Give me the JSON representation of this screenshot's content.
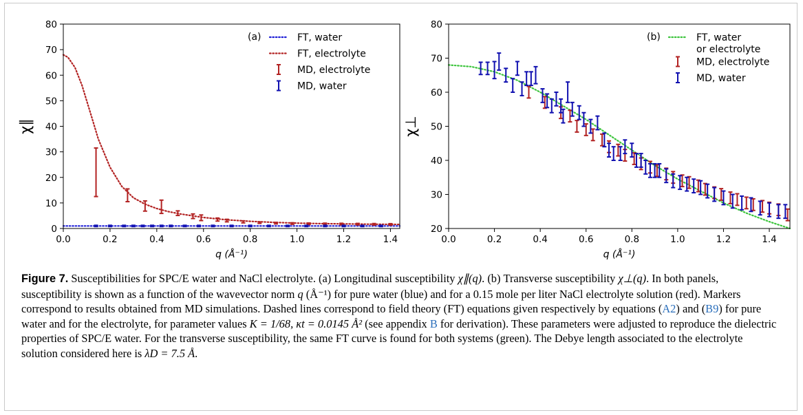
{
  "chart_data": [
    {
      "type": "scatter",
      "panel_label": "(a)",
      "xlabel": "q (Å⁻¹)",
      "ylabel": "χ∥",
      "xlim": [
        0.0,
        1.44
      ],
      "ylim": [
        0,
        80
      ],
      "xticks": [
        0.0,
        0.2,
        0.4,
        0.6,
        0.8,
        1.0,
        1.2,
        1.4
      ],
      "yticks": [
        0,
        10,
        20,
        30,
        40,
        50,
        60,
        70,
        80
      ],
      "legend_position": "top-right",
      "grid": false,
      "series": [
        {
          "name": "FT, water",
          "kind": "line",
          "style": "dotted",
          "color": "#1f1fd6",
          "x": [
            0.0,
            1.44
          ],
          "y": [
            1.0,
            1.0
          ]
        },
        {
          "name": "FT, electrolyte",
          "kind": "line",
          "style": "dotted",
          "color": "#b22222",
          "x": [
            0.0,
            0.02,
            0.05,
            0.08,
            0.1,
            0.12,
            0.15,
            0.2,
            0.25,
            0.3,
            0.35,
            0.4,
            0.45,
            0.5,
            0.6,
            0.7,
            0.8,
            0.9,
            1.0,
            1.1,
            1.2,
            1.3,
            1.44
          ],
          "y": [
            68,
            67,
            63,
            56,
            50,
            44,
            35,
            24,
            16.5,
            12,
            9.5,
            7.8,
            6.6,
            5.7,
            4.3,
            3.4,
            2.8,
            2.4,
            2.1,
            1.9,
            1.8,
            1.7,
            1.6
          ]
        },
        {
          "name": "MD, electrolyte",
          "kind": "errorbar",
          "color": "#b22222",
          "points": [
            {
              "x": 0.14,
              "y": 22,
              "err": 9.5
            },
            {
              "x": 0.275,
              "y": 13,
              "err": 2.5
            },
            {
              "x": 0.35,
              "y": 8.8,
              "err": 2.0
            },
            {
              "x": 0.42,
              "y": 8.5,
              "err": 2.6
            },
            {
              "x": 0.49,
              "y": 6.0,
              "err": 0.9
            },
            {
              "x": 0.555,
              "y": 4.8,
              "err": 0.9
            },
            {
              "x": 0.59,
              "y": 4.2,
              "err": 1.1
            },
            {
              "x": 0.66,
              "y": 3.5,
              "err": 0.6
            },
            {
              "x": 0.7,
              "y": 3.1,
              "err": 0.5
            },
            {
              "x": 0.77,
              "y": 2.6,
              "err": 0.4
            },
            {
              "x": 0.84,
              "y": 2.3,
              "err": 0.3
            },
            {
              "x": 0.91,
              "y": 2.1,
              "err": 0.3
            },
            {
              "x": 0.98,
              "y": 1.95,
              "err": 0.3
            },
            {
              "x": 1.05,
              "y": 1.85,
              "err": 0.3
            },
            {
              "x": 1.12,
              "y": 1.8,
              "err": 0.3
            },
            {
              "x": 1.19,
              "y": 1.75,
              "err": 0.3
            },
            {
              "x": 1.26,
              "y": 1.7,
              "err": 0.3
            },
            {
              "x": 1.33,
              "y": 1.65,
              "err": 0.3
            },
            {
              "x": 1.4,
              "y": 1.6,
              "err": 0.3
            }
          ]
        },
        {
          "name": "MD, water",
          "kind": "errorbar",
          "color": "#1010b0",
          "points": [
            {
              "x": 0.14,
              "y": 1.0,
              "err": 0.25
            },
            {
              "x": 0.2,
              "y": 1.0,
              "err": 0.25
            },
            {
              "x": 0.26,
              "y": 1.0,
              "err": 0.25
            },
            {
              "x": 0.3,
              "y": 1.0,
              "err": 0.25
            },
            {
              "x": 0.34,
              "y": 1.0,
              "err": 0.25
            },
            {
              "x": 0.38,
              "y": 1.0,
              "err": 0.25
            },
            {
              "x": 0.42,
              "y": 1.0,
              "err": 0.25
            },
            {
              "x": 0.46,
              "y": 1.0,
              "err": 0.25
            },
            {
              "x": 0.52,
              "y": 1.0,
              "err": 0.25
            },
            {
              "x": 0.58,
              "y": 1.0,
              "err": 0.25
            },
            {
              "x": 0.64,
              "y": 1.0,
              "err": 0.25
            },
            {
              "x": 0.72,
              "y": 1.0,
              "err": 0.25
            },
            {
              "x": 0.8,
              "y": 1.0,
              "err": 0.25
            },
            {
              "x": 0.88,
              "y": 1.0,
              "err": 0.25
            },
            {
              "x": 0.96,
              "y": 1.0,
              "err": 0.25
            },
            {
              "x": 1.04,
              "y": 1.0,
              "err": 0.25
            },
            {
              "x": 1.12,
              "y": 1.0,
              "err": 0.25
            },
            {
              "x": 1.2,
              "y": 1.0,
              "err": 0.25
            },
            {
              "x": 1.28,
              "y": 1.0,
              "err": 0.25
            },
            {
              "x": 1.36,
              "y": 1.0,
              "err": 0.25
            }
          ]
        }
      ]
    },
    {
      "type": "scatter",
      "panel_label": "(b)",
      "xlabel": "q (Å⁻¹)",
      "ylabel": "χ⊥",
      "xlim": [
        0.0,
        1.49
      ],
      "ylim": [
        20,
        80
      ],
      "xticks": [
        0.0,
        0.2,
        0.4,
        0.6,
        0.8,
        1.0,
        1.2,
        1.4
      ],
      "yticks": [
        20,
        30,
        40,
        50,
        60,
        70,
        80
      ],
      "legend_position": "top-right",
      "grid": false,
      "series": [
        {
          "name": "FT, water or electrolyte",
          "kind": "line",
          "style": "dotted",
          "color": "#3cc43c",
          "x": [
            0.0,
            0.1,
            0.2,
            0.3,
            0.4,
            0.5,
            0.6,
            0.7,
            0.8,
            0.9,
            1.0,
            1.1,
            1.2,
            1.3,
            1.4,
            1.49
          ],
          "y": [
            68,
            67.5,
            66,
            63.5,
            60,
            56,
            52,
            47.5,
            43,
            38.5,
            34.5,
            31,
            27.5,
            24.5,
            22,
            20
          ]
        },
        {
          "name": "MD, electrolyte",
          "kind": "errorbar",
          "color": "#b22222",
          "points": [
            {
              "x": 0.35,
              "y": 60,
              "err": 1.7
            },
            {
              "x": 0.42,
              "y": 57,
              "err": 1.7
            },
            {
              "x": 0.49,
              "y": 54,
              "err": 1.7
            },
            {
              "x": 0.53,
              "y": 53,
              "err": 1.7
            },
            {
              "x": 0.56,
              "y": 50,
              "err": 1.7
            },
            {
              "x": 0.6,
              "y": 49,
              "err": 1.7
            },
            {
              "x": 0.63,
              "y": 47.5,
              "err": 1.7
            },
            {
              "x": 0.67,
              "y": 46,
              "err": 1.7
            },
            {
              "x": 0.7,
              "y": 44,
              "err": 1.7
            },
            {
              "x": 0.74,
              "y": 43,
              "err": 1.7
            },
            {
              "x": 0.77,
              "y": 41.5,
              "err": 1.7
            },
            {
              "x": 0.81,
              "y": 40.5,
              "err": 1.7
            },
            {
              "x": 0.84,
              "y": 39,
              "err": 1.7
            },
            {
              "x": 0.88,
              "y": 38,
              "err": 1.7
            },
            {
              "x": 0.91,
              "y": 37,
              "err": 1.7
            },
            {
              "x": 0.95,
              "y": 36,
              "err": 1.7
            },
            {
              "x": 0.98,
              "y": 35,
              "err": 1.7
            },
            {
              "x": 1.02,
              "y": 34,
              "err": 1.7
            },
            {
              "x": 1.05,
              "y": 33.5,
              "err": 1.7
            },
            {
              "x": 1.09,
              "y": 32.5,
              "err": 1.7
            },
            {
              "x": 1.12,
              "y": 31.5,
              "err": 1.7
            },
            {
              "x": 1.16,
              "y": 30.5,
              "err": 1.7
            },
            {
              "x": 1.19,
              "y": 30,
              "err": 1.7
            },
            {
              "x": 1.23,
              "y": 29,
              "err": 1.7
            },
            {
              "x": 1.26,
              "y": 28.5,
              "err": 1.7
            },
            {
              "x": 1.3,
              "y": 27.5,
              "err": 1.7
            },
            {
              "x": 1.33,
              "y": 27,
              "err": 1.7
            },
            {
              "x": 1.37,
              "y": 26.5,
              "err": 1.7
            },
            {
              "x": 1.4,
              "y": 26,
              "err": 1.7
            },
            {
              "x": 1.44,
              "y": 25.5,
              "err": 1.7
            },
            {
              "x": 1.48,
              "y": 24,
              "err": 1.7
            }
          ]
        },
        {
          "name": "MD, water",
          "kind": "errorbar",
          "color": "#1010b0",
          "points": [
            {
              "x": 0.14,
              "y": 67,
              "err": 1.8
            },
            {
              "x": 0.17,
              "y": 67,
              "err": 1.8
            },
            {
              "x": 0.2,
              "y": 66.5,
              "err": 2.5
            },
            {
              "x": 0.22,
              "y": 69,
              "err": 2.5
            },
            {
              "x": 0.25,
              "y": 65,
              "err": 2.0
            },
            {
              "x": 0.28,
              "y": 62,
              "err": 2.0
            },
            {
              "x": 0.3,
              "y": 67,
              "err": 2.0
            },
            {
              "x": 0.32,
              "y": 61,
              "err": 2.0
            },
            {
              "x": 0.34,
              "y": 64,
              "err": 2.0
            },
            {
              "x": 0.36,
              "y": 64,
              "err": 2.0
            },
            {
              "x": 0.38,
              "y": 65,
              "err": 2.5
            },
            {
              "x": 0.41,
              "y": 59,
              "err": 2.0
            },
            {
              "x": 0.43,
              "y": 57.5,
              "err": 2.0
            },
            {
              "x": 0.45,
              "y": 56,
              "err": 2.0
            },
            {
              "x": 0.47,
              "y": 58,
              "err": 2.0
            },
            {
              "x": 0.49,
              "y": 56,
              "err": 2.0
            },
            {
              "x": 0.5,
              "y": 53,
              "err": 2.0
            },
            {
              "x": 0.52,
              "y": 60,
              "err": 3.0
            },
            {
              "x": 0.54,
              "y": 55,
              "err": 2.0
            },
            {
              "x": 0.57,
              "y": 54,
              "err": 2.0
            },
            {
              "x": 0.59,
              "y": 52,
              "err": 2.0
            },
            {
              "x": 0.62,
              "y": 50,
              "err": 2.0
            },
            {
              "x": 0.65,
              "y": 51,
              "err": 2.0
            },
            {
              "x": 0.68,
              "y": 46,
              "err": 2.0
            },
            {
              "x": 0.7,
              "y": 43,
              "err": 2.0
            },
            {
              "x": 0.72,
              "y": 42,
              "err": 2.0
            },
            {
              "x": 0.75,
              "y": 42,
              "err": 2.0
            },
            {
              "x": 0.77,
              "y": 44,
              "err": 2.0
            },
            {
              "x": 0.8,
              "y": 43,
              "err": 2.0
            },
            {
              "x": 0.82,
              "y": 40,
              "err": 2.0
            },
            {
              "x": 0.84,
              "y": 40,
              "err": 2.0
            },
            {
              "x": 0.86,
              "y": 38,
              "err": 2.0
            },
            {
              "x": 0.88,
              "y": 37,
              "err": 2.0
            },
            {
              "x": 0.9,
              "y": 37,
              "err": 2.0
            },
            {
              "x": 0.92,
              "y": 37,
              "err": 2.0
            },
            {
              "x": 0.95,
              "y": 35.5,
              "err": 2.0
            },
            {
              "x": 0.98,
              "y": 34,
              "err": 2.0
            },
            {
              "x": 1.01,
              "y": 33.5,
              "err": 2.0
            },
            {
              "x": 1.04,
              "y": 33,
              "err": 2.0
            },
            {
              "x": 1.07,
              "y": 32.5,
              "err": 2.0
            },
            {
              "x": 1.1,
              "y": 32,
              "err": 2.0
            },
            {
              "x": 1.13,
              "y": 31,
              "err": 2.0
            },
            {
              "x": 1.16,
              "y": 30,
              "err": 2.0
            },
            {
              "x": 1.2,
              "y": 29,
              "err": 2.0
            },
            {
              "x": 1.24,
              "y": 28,
              "err": 2.0
            },
            {
              "x": 1.28,
              "y": 27.5,
              "err": 2.0
            },
            {
              "x": 1.32,
              "y": 27,
              "err": 2.0
            },
            {
              "x": 1.36,
              "y": 26,
              "err": 2.0
            },
            {
              "x": 1.4,
              "y": 25.5,
              "err": 2.0
            },
            {
              "x": 1.44,
              "y": 25,
              "err": 2.0
            },
            {
              "x": 1.47,
              "y": 25,
              "err": 2.0
            }
          ]
        }
      ]
    }
  ],
  "caption": {
    "label": "Figure 7.",
    "t1": " Susceptibilities for SPC/E water and NaCl electrolyte. (a) Longitudinal susceptibility ",
    "m1": "χ∥(q)",
    "t2": ". (b) Transverse susceptibility ",
    "m2": "χ⊥(q)",
    "t3": ". In both panels, susceptibility is shown as a function of the wavevector norm ",
    "m3": "q",
    "t4": " (Å⁻¹) for pure water (blue) and for a 0.15 mole per liter NaCl electrolyte solution (red). Markers correspond to results obtained from MD simulations. Dashed lines correspond to field theory (FT) equations given respectively by equations (",
    "ref1": "A2",
    "t5": ") and (",
    "ref2": "B9",
    "t6": ") for pure water and for the electrolyte, for parameter values ",
    "m4": "K = 1/68, κt = 0.0145 Å²",
    "t7": " (see appendix ",
    "ref3": "B",
    "t8": " for derivation). These parameters were adjusted to reproduce the dielectric properties of SPC/E water. For the transverse susceptibility, the same FT curve is found for both systems (green). The Debye length associated to the electrolyte solution considered here is ",
    "m5": "λD = 7.5 Å",
    "t9": "."
  }
}
